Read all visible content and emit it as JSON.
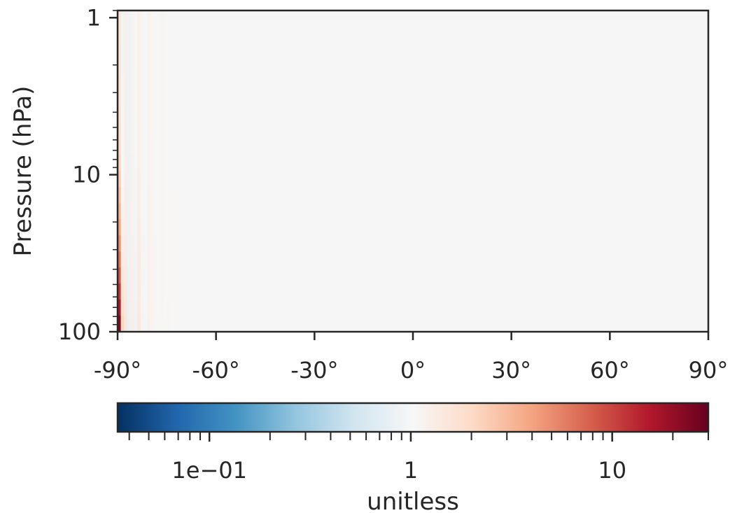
{
  "chart_data": {
    "type": "heatmap",
    "title": "",
    "xlabel": "",
    "ylabel": "Pressure (hPa)",
    "x_range": [
      -90,
      90
    ],
    "y_range": [
      100,
      0.9
    ],
    "y_scale": "log",
    "x_ticks": [
      -90,
      -60,
      -30,
      0,
      30,
      60,
      90
    ],
    "x_tick_labels": [
      "-90°",
      "-60°",
      "-30°",
      "0°",
      "30°",
      "60°",
      "90°"
    ],
    "y_ticks": [
      1,
      10,
      100
    ],
    "y_tick_labels": [
      "1",
      "10",
      "100"
    ],
    "grid": false,
    "colormap": "RdBu_r",
    "description": "",
    "colorbar": {
      "label": "unitless",
      "scale": "log",
      "range": [
        0.035,
        30
      ],
      "tick_labels": [
        "1e−01",
        "1",
        "10"
      ],
      "tick_values": [
        0.1,
        1,
        10
      ],
      "orientation": "horizontal"
    },
    "field": {
      "background_value": 1.0,
      "column_anomalies": [
        {
          "lon": -89.5,
          "ratio_top": 1.6,
          "ratio_bottom": 30
        },
        {
          "lon": -88.5,
          "ratio_top": 0.9,
          "ratio_bottom": 2.2
        },
        {
          "lon": -87.5,
          "ratio_top": 1.2,
          "ratio_bottom": 1.5
        },
        {
          "lon": -86.5,
          "ratio_top": 0.85,
          "ratio_bottom": 0.8
        },
        {
          "lon": -85.5,
          "ratio_top": 1.1,
          "ratio_bottom": 1.3
        },
        {
          "lon": -84.5,
          "ratio_top": 0.95,
          "ratio_bottom": 0.85
        },
        {
          "lon": -83.5,
          "ratio_top": 1.2,
          "ratio_bottom": 1.45
        },
        {
          "lon": -82.5,
          "ratio_top": 1.05,
          "ratio_bottom": 1.1
        },
        {
          "lon": -81.5,
          "ratio_top": 0.97,
          "ratio_bottom": 0.92
        },
        {
          "lon": -80.5,
          "ratio_top": 1.1,
          "ratio_bottom": 1.2
        },
        {
          "lon": -79.5,
          "ratio_top": 1.06,
          "ratio_bottom": 1.1
        },
        {
          "lon": -78.5,
          "ratio_top": 1.03,
          "ratio_bottom": 1.05
        },
        {
          "lon": -76.5,
          "ratio_top": 1.05,
          "ratio_bottom": 1.06
        },
        {
          "lon": -74.5,
          "ratio_top": 1.03,
          "ratio_bottom": 1.04
        },
        {
          "lon": -71.5,
          "ratio_top": 1.02,
          "ratio_bottom": 1.03
        },
        {
          "lon": -68.5,
          "ratio_top": 1.02,
          "ratio_bottom": 1.02
        }
      ]
    }
  }
}
